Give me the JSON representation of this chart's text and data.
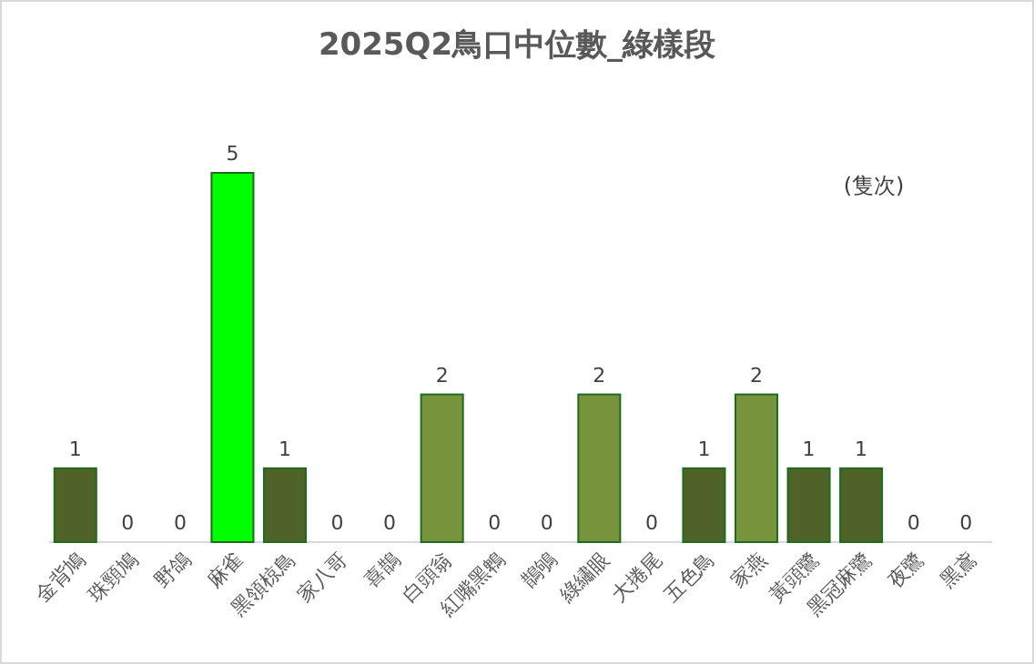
{
  "chart_data": {
    "type": "bar",
    "title": "2025Q2鳥口中位數_綠樣段",
    "ylabel": "(隻次)",
    "categories": [
      "金背鳩",
      "珠頸鳩",
      "野鴿",
      "麻雀",
      "黑領椋鳥",
      "家八哥",
      "喜鵲",
      "白頭翁",
      "紅嘴黑鵯",
      "鵲鴝",
      "綠繡眼",
      "大捲尾",
      "五色鳥",
      "家燕",
      "黃頭鷺",
      "黑冠麻鷺",
      "夜鷺",
      "黑鳶"
    ],
    "values": [
      1,
      0,
      0,
      5,
      1,
      0,
      0,
      2,
      0,
      0,
      2,
      0,
      1,
      2,
      1,
      1,
      0,
      0
    ],
    "colors": [
      "#4f6228",
      "#4f6228",
      "#4f6228",
      "#00ff00",
      "#4f6228",
      "#4f6228",
      "#4f6228",
      "#77933c",
      "#77933c",
      "#77933c",
      "#77933c",
      "#4f6228",
      "#4f6228",
      "#77933c",
      "#4f6228",
      "#4f6228",
      "#4f6228",
      "#4f6228"
    ],
    "data_labels": true
  }
}
